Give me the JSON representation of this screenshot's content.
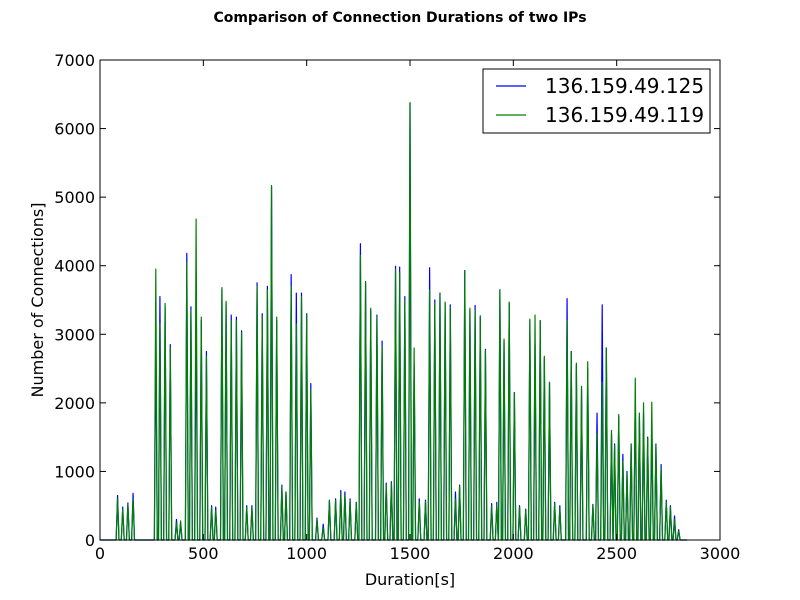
{
  "chart_data": {
    "type": "line",
    "title": "Comparison of Connection Durations of two IPs",
    "xlabel": "Duration[s]",
    "ylabel": "Number of Connections]",
    "xlim": [
      0,
      3000
    ],
    "ylim": [
      0,
      7000
    ],
    "xticks": [
      0,
      500,
      1000,
      1500,
      2000,
      2500,
      3000
    ],
    "yticks": [
      0,
      1000,
      2000,
      3000,
      4000,
      5000,
      6000,
      7000
    ],
    "grid": false,
    "legend_position": "top-right",
    "series": [
      {
        "name": "136.159.49.125",
        "color": "#0000ff",
        "peaks": [
          [
            85,
            650
          ],
          [
            110,
            480
          ],
          [
            135,
            540
          ],
          [
            160,
            680
          ],
          [
            270,
            3000
          ],
          [
            290,
            3550
          ],
          [
            315,
            3400
          ],
          [
            340,
            2850
          ],
          [
            370,
            300
          ],
          [
            390,
            250
          ],
          [
            420,
            4180
          ],
          [
            440,
            3400
          ],
          [
            465,
            3300
          ],
          [
            490,
            3200
          ],
          [
            515,
            2750
          ],
          [
            540,
            500
          ],
          [
            560,
            480
          ],
          [
            590,
            3650
          ],
          [
            610,
            3450
          ],
          [
            635,
            3280
          ],
          [
            660,
            3250
          ],
          [
            685,
            3050
          ],
          [
            710,
            500
          ],
          [
            735,
            500
          ],
          [
            760,
            3750
          ],
          [
            785,
            3300
          ],
          [
            810,
            3700
          ],
          [
            830,
            5150
          ],
          [
            855,
            3200
          ],
          [
            880,
            800
          ],
          [
            900,
            700
          ],
          [
            925,
            3870
          ],
          [
            950,
            3600
          ],
          [
            975,
            3600
          ],
          [
            1000,
            3300
          ],
          [
            1020,
            2280
          ],
          [
            1050,
            320
          ],
          [
            1080,
            230
          ],
          [
            1110,
            580
          ],
          [
            1140,
            600
          ],
          [
            1165,
            720
          ],
          [
            1185,
            700
          ],
          [
            1210,
            600
          ],
          [
            1240,
            550
          ],
          [
            1260,
            4320
          ],
          [
            1285,
            3750
          ],
          [
            1310,
            3350
          ],
          [
            1340,
            3280
          ],
          [
            1365,
            2900
          ],
          [
            1385,
            830
          ],
          [
            1410,
            850
          ],
          [
            1430,
            3990
          ],
          [
            1450,
            3980
          ],
          [
            1475,
            3550
          ],
          [
            1500,
            6370
          ],
          [
            1520,
            2550
          ],
          [
            1545,
            600
          ],
          [
            1575,
            580
          ],
          [
            1595,
            3970
          ],
          [
            1620,
            3500
          ],
          [
            1645,
            3600
          ],
          [
            1670,
            3450
          ],
          [
            1695,
            3430
          ],
          [
            1720,
            700
          ],
          [
            1740,
            800
          ],
          [
            1765,
            3930
          ],
          [
            1790,
            3350
          ],
          [
            1815,
            3420
          ],
          [
            1840,
            3250
          ],
          [
            1865,
            2780
          ],
          [
            1895,
            530
          ],
          [
            1920,
            550
          ],
          [
            1935,
            3650
          ],
          [
            1955,
            2900
          ],
          [
            1980,
            3450
          ],
          [
            2005,
            2150
          ],
          [
            2030,
            500
          ],
          [
            2060,
            450
          ],
          [
            2080,
            3200
          ],
          [
            2105,
            2850
          ],
          [
            2130,
            3200
          ],
          [
            2150,
            2650
          ],
          [
            2175,
            2300
          ],
          [
            2200,
            550
          ],
          [
            2225,
            500
          ],
          [
            2260,
            3520
          ],
          [
            2280,
            2750
          ],
          [
            2305,
            2550
          ],
          [
            2330,
            2200
          ],
          [
            2360,
            2500
          ],
          [
            2385,
            520
          ],
          [
            2405,
            1850
          ],
          [
            2430,
            3430
          ],
          [
            2450,
            2800
          ],
          [
            2475,
            1550
          ],
          [
            2490,
            1400
          ],
          [
            2510,
            1800
          ],
          [
            2530,
            1250
          ],
          [
            2550,
            1000
          ],
          [
            2570,
            1400
          ],
          [
            2590,
            2050
          ],
          [
            2610,
            1800
          ],
          [
            2630,
            1850
          ],
          [
            2650,
            1500
          ],
          [
            2670,
            1600
          ],
          [
            2690,
            1400
          ],
          [
            2715,
            1100
          ],
          [
            2740,
            580
          ],
          [
            2760,
            500
          ],
          [
            2780,
            350
          ],
          [
            2800,
            150
          ]
        ]
      },
      {
        "name": "136.159.49.119",
        "color": "#008000",
        "peaks": [
          [
            85,
            600
          ],
          [
            110,
            450
          ],
          [
            135,
            520
          ],
          [
            160,
            600
          ],
          [
            270,
            3950
          ],
          [
            290,
            3150
          ],
          [
            315,
            3450
          ],
          [
            340,
            2800
          ],
          [
            370,
            250
          ],
          [
            390,
            280
          ],
          [
            420,
            4050
          ],
          [
            440,
            3350
          ],
          [
            465,
            4680
          ],
          [
            490,
            3250
          ],
          [
            515,
            2680
          ],
          [
            540,
            480
          ],
          [
            560,
            430
          ],
          [
            590,
            3680
          ],
          [
            610,
            3480
          ],
          [
            635,
            3200
          ],
          [
            660,
            3200
          ],
          [
            685,
            3020
          ],
          [
            710,
            480
          ],
          [
            735,
            470
          ],
          [
            760,
            3700
          ],
          [
            785,
            3250
          ],
          [
            810,
            3650
          ],
          [
            830,
            5170
          ],
          [
            855,
            3250
          ],
          [
            880,
            780
          ],
          [
            900,
            700
          ],
          [
            925,
            3700
          ],
          [
            950,
            3150
          ],
          [
            975,
            3550
          ],
          [
            1000,
            3300
          ],
          [
            1020,
            2200
          ],
          [
            1050,
            300
          ],
          [
            1080,
            180
          ],
          [
            1110,
            570
          ],
          [
            1140,
            580
          ],
          [
            1165,
            680
          ],
          [
            1185,
            650
          ],
          [
            1210,
            570
          ],
          [
            1240,
            530
          ],
          [
            1260,
            4150
          ],
          [
            1285,
            3770
          ],
          [
            1310,
            3380
          ],
          [
            1340,
            3250
          ],
          [
            1365,
            2830
          ],
          [
            1385,
            800
          ],
          [
            1410,
            830
          ],
          [
            1430,
            3950
          ],
          [
            1450,
            3900
          ],
          [
            1475,
            3500
          ],
          [
            1500,
            6380
          ],
          [
            1520,
            2800
          ],
          [
            1545,
            560
          ],
          [
            1575,
            560
          ],
          [
            1595,
            3650
          ],
          [
            1620,
            3450
          ],
          [
            1645,
            3580
          ],
          [
            1670,
            3470
          ],
          [
            1695,
            3400
          ],
          [
            1720,
            600
          ],
          [
            1740,
            780
          ],
          [
            1765,
            3920
          ],
          [
            1790,
            3380
          ],
          [
            1815,
            3350
          ],
          [
            1840,
            3270
          ],
          [
            1865,
            2760
          ],
          [
            1895,
            500
          ],
          [
            1920,
            520
          ],
          [
            1935,
            3650
          ],
          [
            1955,
            2930
          ],
          [
            1980,
            3470
          ],
          [
            2005,
            2150
          ],
          [
            2030,
            480
          ],
          [
            2060,
            440
          ],
          [
            2080,
            3220
          ],
          [
            2105,
            3280
          ],
          [
            2130,
            3200
          ],
          [
            2150,
            2680
          ],
          [
            2175,
            2300
          ],
          [
            2200,
            530
          ],
          [
            2225,
            460
          ],
          [
            2260,
            3200
          ],
          [
            2280,
            2750
          ],
          [
            2305,
            2580
          ],
          [
            2330,
            2240
          ],
          [
            2360,
            2600
          ],
          [
            2385,
            500
          ],
          [
            2405,
            1550
          ],
          [
            2430,
            2300
          ],
          [
            2450,
            2800
          ],
          [
            2475,
            1600
          ],
          [
            2490,
            1380
          ],
          [
            2510,
            1830
          ],
          [
            2530,
            1150
          ],
          [
            2550,
            970
          ],
          [
            2570,
            1400
          ],
          [
            2590,
            2360
          ],
          [
            2610,
            1850
          ],
          [
            2630,
            2000
          ],
          [
            2650,
            1480
          ],
          [
            2670,
            2010
          ],
          [
            2690,
            1380
          ],
          [
            2715,
            1050
          ],
          [
            2740,
            560
          ],
          [
            2760,
            480
          ],
          [
            2780,
            300
          ],
          [
            2800,
            130
          ]
        ]
      }
    ]
  }
}
